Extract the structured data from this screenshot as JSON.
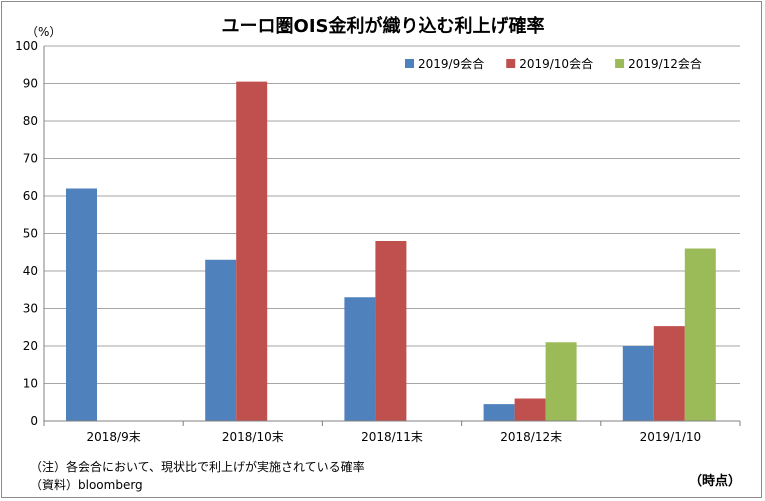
{
  "chart_data": {
    "type": "bar",
    "title": "ユーロ圏OIS金利が織り込む利上げ確率",
    "ylabel": "（%）",
    "xlabel": "（時点）",
    "ylim": [
      0,
      100
    ],
    "yticks": [
      0,
      10,
      20,
      30,
      40,
      50,
      60,
      70,
      80,
      90,
      100
    ],
    "grid": true,
    "legend_position": "top-right",
    "categories": [
      "2018/9末",
      "2018/10末",
      "2018/11末",
      "2018/12末",
      "2019/1/10"
    ],
    "series": [
      {
        "name": "2019/9会合",
        "color": "#4f81bd",
        "values": [
          62,
          43,
          33,
          4.5,
          20
        ]
      },
      {
        "name": "2019/10会合",
        "color": "#c0504d",
        "values": [
          null,
          90.5,
          48,
          6,
          25.3
        ]
      },
      {
        "name": "2019/12会合",
        "color": "#9bbb59",
        "values": [
          null,
          null,
          null,
          21,
          46
        ]
      }
    ]
  },
  "notes": {
    "note1": "（注）各会合において、現状比で利上げが実施されている確率",
    "note2": "（資料）bloomberg"
  }
}
